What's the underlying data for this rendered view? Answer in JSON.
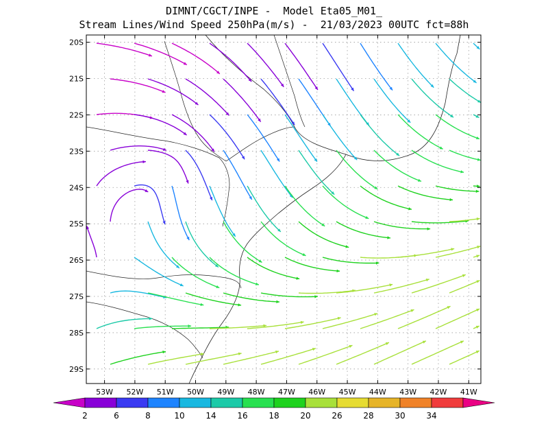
{
  "header": {
    "line1": "DIMNT/CGCT/INPE -  Model Eta05_M01_",
    "line2": "Stream Lines/Wind Speed 250hPa(m/s) -  21/03/2023 00UTC fct=88h"
  },
  "axes": {
    "lat_labels": [
      "20S",
      "21S",
      "22S",
      "23S",
      "24S",
      "25S",
      "26S",
      "27S",
      "28S",
      "29S"
    ],
    "lon_labels": [
      "53W",
      "52W",
      "51W",
      "50W",
      "49W",
      "48W",
      "47W",
      "46W",
      "45W",
      "44W",
      "43W",
      "42W",
      "41W"
    ],
    "lat_range": [
      -29.4,
      -19.8
    ],
    "lon_range": [
      -53.6,
      -40.6
    ]
  },
  "colorbar": {
    "labels": [
      "2",
      "6",
      "8",
      "10",
      "14",
      "16",
      "18",
      "20",
      "26",
      "28",
      "30",
      "34"
    ],
    "colors": [
      "#c800c8",
      "#8800d8",
      "#3a3af2",
      "#1e84ff",
      "#18b8e0",
      "#1ccaa8",
      "#28e050",
      "#1ed21e",
      "#a8e03a",
      "#e6dc32",
      "#e6b428",
      "#f08228",
      "#f03c3c",
      "#ea0084"
    ]
  },
  "map": {
    "grid": "dotted",
    "layers": [
      "coastline",
      "state-borders",
      "streamlines"
    ]
  }
}
